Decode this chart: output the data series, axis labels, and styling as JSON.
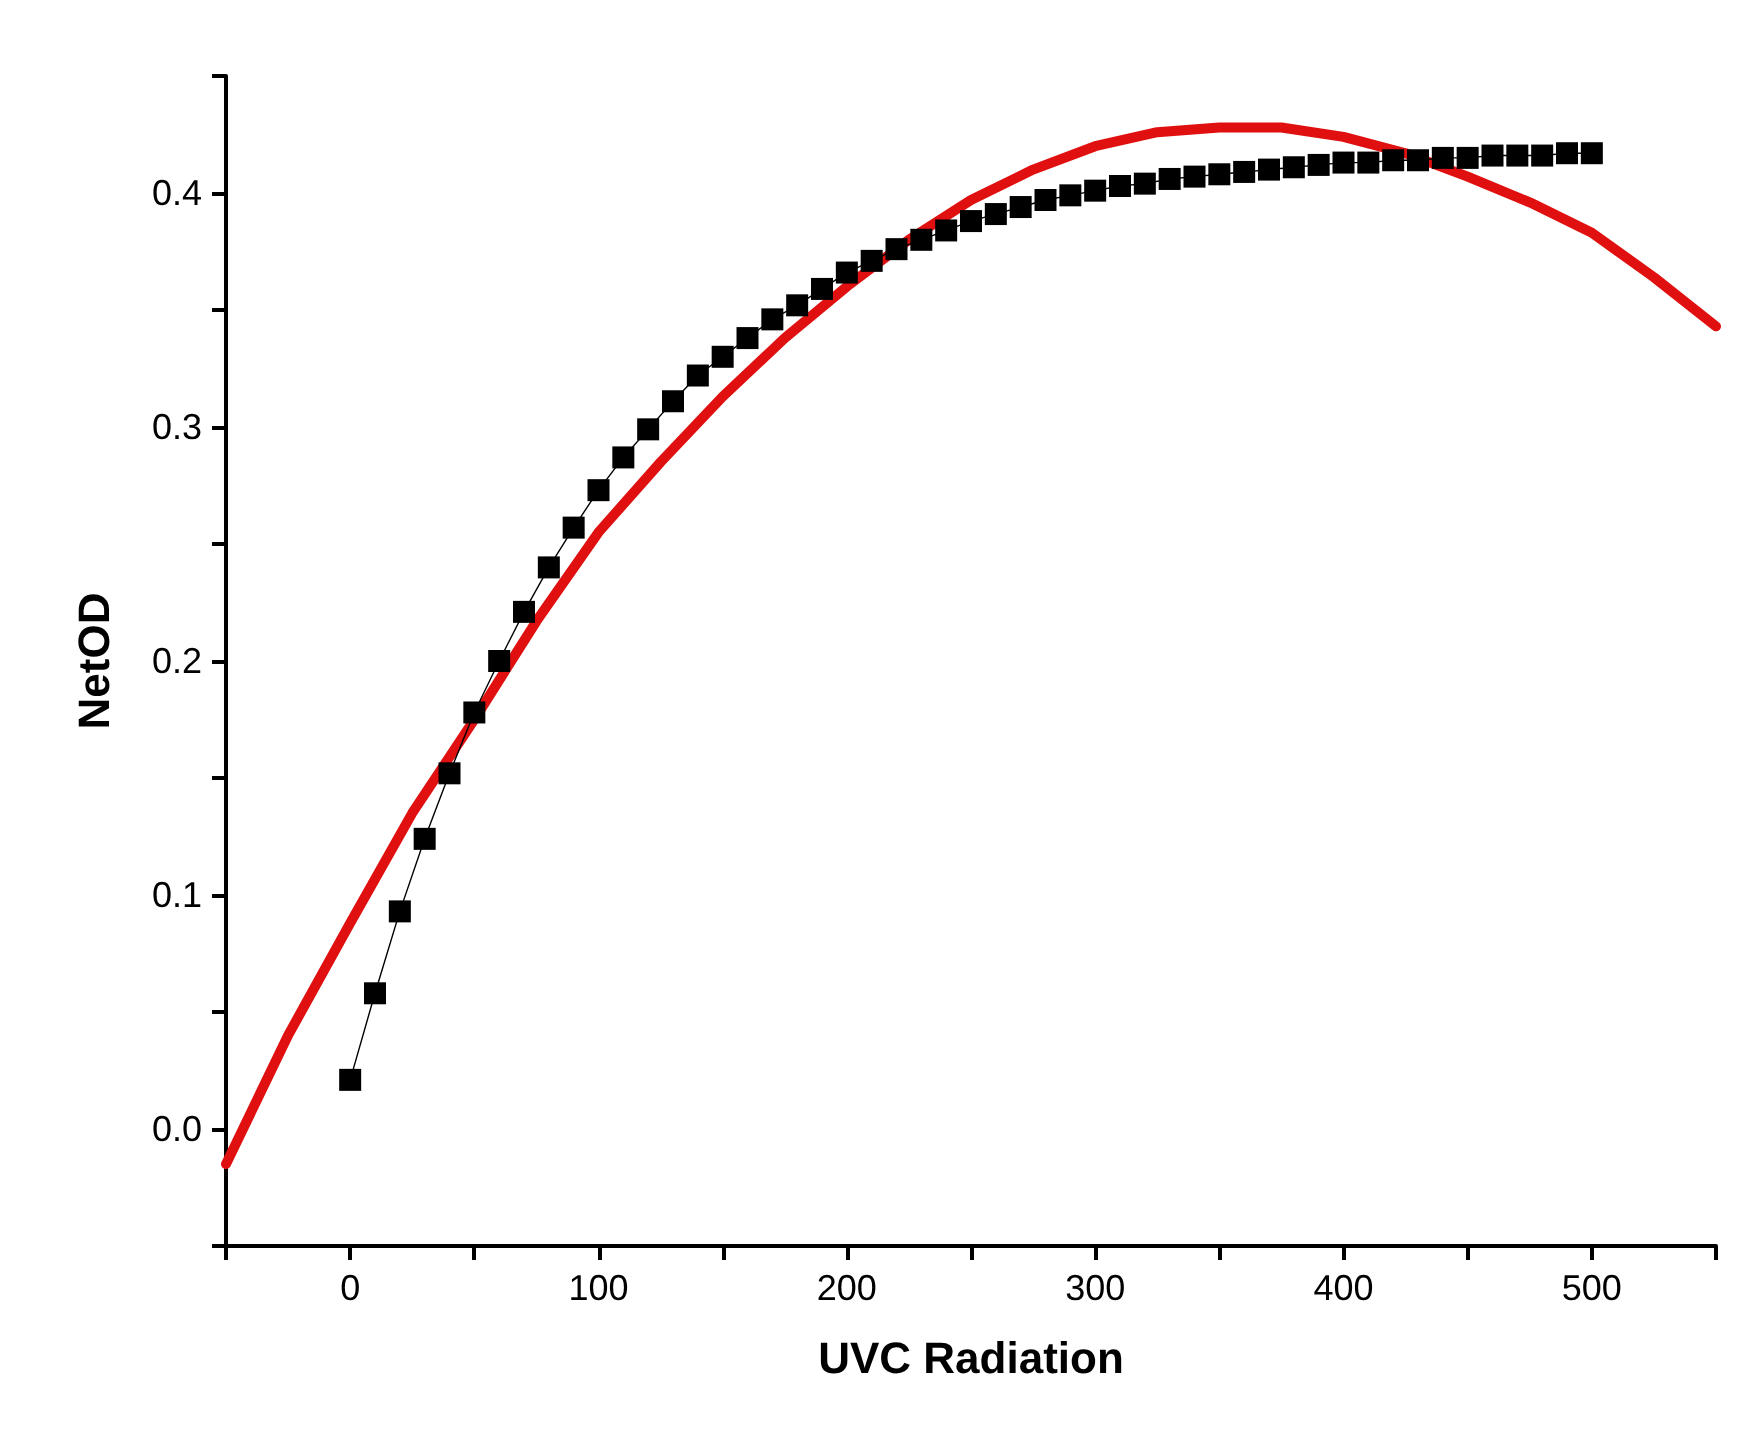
{
  "chart_data": {
    "type": "line",
    "xlabel": "UVC Radiation",
    "ylabel": "NetOD",
    "xlim": [
      -50,
      550
    ],
    "xticks": [
      {
        "value": -50,
        "label": null
      },
      0,
      {
        "value": 50,
        "label": null
      },
      100,
      {
        "value": 150,
        "label": null
      },
      200,
      {
        "value": 250,
        "label": null
      },
      300,
      {
        "value": 350,
        "label": null
      },
      400,
      {
        "value": 450,
        "label": null
      },
      500,
      {
        "value": 550,
        "label": null
      }
    ],
    "ylim": [
      -0.05,
      0.45
    ],
    "yticks": [
      {
        "value": -0.05,
        "label": null
      },
      {
        "value": 0,
        "label": "0.0"
      },
      {
        "value": 0.05,
        "label": null
      },
      0.1,
      {
        "value": 0.15,
        "label": null
      },
      0.2,
      {
        "value": 0.25,
        "label": null
      },
      0.3,
      {
        "value": 0.35,
        "label": null
      },
      0.4,
      {
        "value": 0.45,
        "label": null
      }
    ],
    "grid": false,
    "line_style": "solid",
    "series": [
      {
        "color": "#000000",
        "marker": "square",
        "x": [
          0,
          10,
          20,
          30,
          40,
          50,
          60,
          70,
          80,
          90,
          100,
          110,
          120,
          130,
          140,
          150,
          160,
          170,
          180,
          190,
          200,
          210,
          220,
          230,
          240,
          250,
          260,
          270,
          280,
          290,
          300,
          310,
          320,
          330,
          340,
          350,
          360,
          370,
          380,
          390,
          400,
          410,
          420,
          430,
          440,
          450,
          460,
          470,
          480,
          490,
          500
        ],
        "values": [
          0.021,
          0.058,
          0.093,
          0.124,
          0.152,
          0.178,
          0.2,
          0.221,
          0.24,
          0.257,
          0.273,
          0.287,
          0.299,
          0.311,
          0.322,
          0.33,
          0.338,
          0.346,
          0.352,
          0.359,
          0.366,
          0.371,
          0.376,
          0.38,
          0.384,
          0.388,
          0.391,
          0.394,
          0.397,
          0.399,
          0.401,
          0.403,
          0.404,
          0.406,
          0.407,
          0.408,
          0.409,
          0.41,
          0.411,
          0.412,
          0.413,
          0.413,
          0.414,
          0.414,
          0.415,
          0.415,
          0.416,
          0.416,
          0.416,
          0.417,
          0.417
        ]
      },
      {
        "color": "#e01010",
        "marker": "none",
        "x": [
          -50,
          -25,
          0,
          25,
          50,
          75,
          100,
          125,
          150,
          175,
          200,
          225,
          250,
          275,
          300,
          325,
          350,
          375,
          400,
          425,
          450,
          475,
          500,
          525,
          550
        ],
        "values": [
          -0.015,
          0.04,
          0.088,
          0.135,
          0.175,
          0.217,
          0.255,
          0.285,
          0.313,
          0.338,
          0.36,
          0.38,
          0.397,
          0.41,
          0.42,
          0.426,
          0.428,
          0.428,
          0.424,
          0.417,
          0.407,
          0.396,
          0.383,
          0.364,
          0.343
        ]
      }
    ]
  }
}
